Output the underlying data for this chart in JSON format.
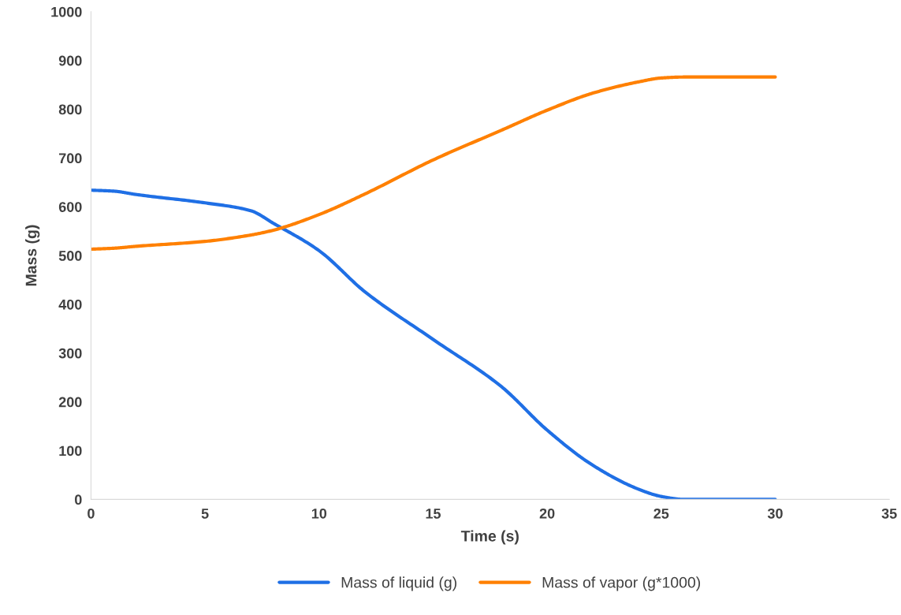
{
  "chart_data": {
    "type": "line",
    "xlabel": "Time (s)",
    "ylabel": "Mass (g)",
    "xlim": [
      0,
      35
    ],
    "xticks": [
      0,
      5,
      10,
      15,
      20,
      25,
      30,
      35
    ],
    "ylim": [
      0,
      1000
    ],
    "yticks": [
      0,
      100,
      200,
      300,
      400,
      500,
      600,
      700,
      800,
      900,
      1000
    ],
    "grid": false,
    "legend": "bottom",
    "marker": "none",
    "line_style": "solid",
    "series": [
      {
        "name": "Mass of liquid (g)",
        "color": "#1f6fe5",
        "x": [
          0,
          1,
          2,
          5,
          7,
          8,
          10,
          12,
          15,
          18,
          20,
          22,
          24,
          25,
          26,
          30
        ],
        "values": [
          634,
          632,
          625,
          608,
          592,
          566,
          510,
          426,
          328,
          231,
          142,
          70,
          21,
          6,
          0,
          0
        ]
      },
      {
        "name": "Mass of vapor (g*1000)",
        "color": "#ff8000",
        "x": [
          0,
          1,
          2,
          5,
          7,
          8,
          10,
          12,
          15,
          18,
          20,
          22,
          24,
          25,
          26,
          30
        ],
        "values": [
          513,
          515,
          519,
          529,
          542,
          552,
          584,
          626,
          696,
          757,
          798,
          833,
          856,
          864,
          866,
          866
        ]
      }
    ]
  }
}
